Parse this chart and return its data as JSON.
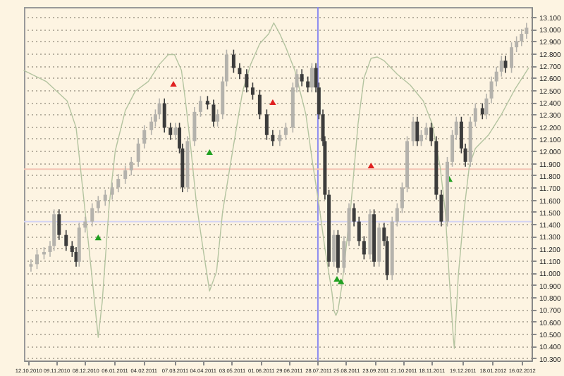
{
  "chart_data": {
    "type": "candlestick",
    "colors": [
      "#b4b2ac",
      "#b4b2ac",
      "#b4b2ac",
      "#b4b2ac",
      "#b4b2ac",
      "#3c3c3c",
      "#3c3c3c",
      "#3c3c3c",
      "#3c3c3c",
      "#b4b2ac",
      "#b4b2ac",
      "#b4b2ac",
      "#b4b2ac",
      "#b4b2ac",
      "#b4b2ac",
      "#b4b2ac",
      "#b4b2ac",
      "#b4b2ac",
      "#b4b2ac",
      "#b4b2ac",
      "#b4b2ac",
      "#b4b2ac",
      "#b4b2ac",
      "#3c3c3c",
      "#3c3c3c",
      "#b4b2ac",
      "#3c3c3c",
      "#3c3c3c",
      "#b4b2ac",
      "#b4b2ac",
      "#b4b2ac",
      "#3c3c3c",
      "#3c3c3c",
      "#b4b2ac",
      "#b4b2ac",
      "#b4b2ac",
      "#3c3c3c",
      "#3c3c3c",
      "#3c3c3c",
      "#3c3c3c",
      "#3c3c3c",
      "#3c3c3c",
      "#3c3c3c",
      "#b4b2ac",
      "#b4b2ac",
      "#b4b2ac",
      "#b4b2ac",
      "#3c3c3c",
      "#3c3c3c",
      "#b4b2ac",
      "#3c3c3c",
      "#3c3c3c",
      "#3c3c3c",
      "#3c3c3c",
      "#3c3c3c",
      "#b4b2ac",
      "#3c3c3c",
      "#b4b2ac",
      "#b4b2ac",
      "#3c3c3c",
      "#3c3c3c",
      "#3c3c3c",
      "#b4b2ac",
      "#3c3c3c",
      "#b4b2ac",
      "#3c3c3c",
      "#3c3c3c",
      "#b4b2ac",
      "#b4b2ac",
      "#b4b2ac",
      "#b4b2ac",
      "#b4b2ac",
      "#3c3c3c",
      "#b4b2ac",
      "#b4b2ac",
      "#3c3c3c",
      "#3c3c3c",
      "#3c3c3c",
      "#b4b2ac",
      "#b4b2ac",
      "#b4b2ac",
      "#3c3c3c",
      "#3c3c3c",
      "#b4b2ac",
      "#b4b2ac",
      "#3c3c3c",
      "#b4b2ac",
      "#b4b2ac",
      "#b4b2ac",
      "#b4b2ac",
      "#3c3c3c",
      "#b4b2ac",
      "#b4b2ac",
      "#b4b2ac",
      "#b4b2ac"
    ],
    "x": [
      "2010-10-15",
      "2010-10-21",
      "2010-10-28",
      "2010-11-03",
      "2010-11-07",
      "2010-11-12",
      "2010-11-19",
      "2010-11-25",
      "2010-11-29",
      "2010-12-02",
      "2010-12-08",
      "2010-12-15",
      "2010-12-21",
      "2010-12-28",
      "2011-01-04",
      "2011-01-10",
      "2011-01-17",
      "2011-01-23",
      "2011-01-30",
      "2011-02-05",
      "2011-02-12",
      "2011-02-16",
      "2011-02-20",
      "2011-02-25",
      "2011-03-03",
      "2011-03-08",
      "2011-03-12",
      "2011-03-15",
      "2011-03-20",
      "2011-03-27",
      "2011-04-02",
      "2011-04-09",
      "2011-04-15",
      "2011-04-19",
      "2011-04-24",
      "2011-04-28",
      "2011-05-05",
      "2011-05-11",
      "2011-05-18",
      "2011-05-24",
      "2011-05-31",
      "2011-06-07",
      "2011-06-13",
      "2011-06-20",
      "2011-06-26",
      "2011-07-03",
      "2011-07-07",
      "2011-07-12",
      "2011-07-18",
      "2011-07-22",
      "2011-07-26",
      "2011-07-29",
      "2011-08-02",
      "2011-08-04",
      "2011-08-08",
      "2011-08-13",
      "2011-08-17",
      "2011-08-23",
      "2011-08-28",
      "2011-09-02",
      "2011-09-07",
      "2011-09-12",
      "2011-09-18",
      "2011-09-22",
      "2011-09-27",
      "2011-10-02",
      "2011-10-05",
      "2011-10-10",
      "2011-10-15",
      "2011-10-20",
      "2011-10-25",
      "2011-10-31",
      "2011-11-04",
      "2011-11-08",
      "2011-11-13",
      "2011-11-18",
      "2011-11-23",
      "2011-11-28",
      "2011-12-04",
      "2011-12-09",
      "2011-12-13",
      "2011-12-18",
      "2011-12-22",
      "2011-12-27",
      "2012-01-01",
      "2012-01-08",
      "2012-01-12",
      "2012-01-17",
      "2012-01-22",
      "2012-01-27",
      "2012-01-31",
      "2012-02-06",
      "2012-02-11",
      "2012-02-16",
      "2012-02-21"
    ],
    "ohlc": [
      [
        11050,
        11110,
        11010,
        11070
      ],
      [
        11070,
        11190,
        11030,
        11150
      ],
      [
        11150,
        11210,
        11110,
        11170
      ],
      [
        11170,
        11260,
        11130,
        11220
      ],
      [
        11220,
        11520,
        11180,
        11480
      ],
      [
        11480,
        11520,
        11270,
        11310
      ],
      [
        11310,
        11350,
        11180,
        11220
      ],
      [
        11220,
        11260,
        11130,
        11170
      ],
      [
        11170,
        11210,
        11050,
        11090
      ],
      [
        11090,
        11410,
        11050,
        11370
      ],
      [
        11370,
        11460,
        11330,
        11420
      ],
      [
        11420,
        11570,
        11380,
        11530
      ],
      [
        11530,
        11630,
        11490,
        11590
      ],
      [
        11590,
        11680,
        11550,
        11640
      ],
      [
        11640,
        11740,
        11600,
        11700
      ],
      [
        11700,
        11810,
        11660,
        11770
      ],
      [
        11770,
        11880,
        11730,
        11840
      ],
      [
        11840,
        11950,
        11800,
        11910
      ],
      [
        11910,
        12100,
        11870,
        12060
      ],
      [
        12060,
        12210,
        12020,
        12170
      ],
      [
        12170,
        12280,
        12130,
        12240
      ],
      [
        12240,
        12340,
        12200,
        12300
      ],
      [
        12300,
        12430,
        12260,
        12390
      ],
      [
        12390,
        12430,
        12150,
        12190
      ],
      [
        12190,
        12230,
        12090,
        12130
      ],
      [
        12130,
        12230,
        12090,
        12190
      ],
      [
        12190,
        12230,
        11980,
        12020
      ],
      [
        12020,
        12060,
        11660,
        11700
      ],
      [
        11700,
        12120,
        11660,
        12080
      ],
      [
        12080,
        12360,
        12040,
        12320
      ],
      [
        12320,
        12450,
        12280,
        12410
      ],
      [
        12410,
        12450,
        12340,
        12380
      ],
      [
        12380,
        12420,
        12200,
        12240
      ],
      [
        12240,
        12340,
        12200,
        12300
      ],
      [
        12300,
        12610,
        12260,
        12570
      ],
      [
        12570,
        12830,
        12530,
        12790
      ],
      [
        12790,
        12830,
        12640,
        12680
      ],
      [
        12680,
        12720,
        12590,
        12630
      ],
      [
        12630,
        12670,
        12480,
        12520
      ],
      [
        12520,
        12560,
        12420,
        12460
      ],
      [
        12460,
        12500,
        12260,
        12300
      ],
      [
        12300,
        12340,
        12090,
        12130
      ],
      [
        12130,
        12170,
        12040,
        12080
      ],
      [
        12080,
        12170,
        12040,
        12130
      ],
      [
        12130,
        12230,
        12090,
        12190
      ],
      [
        12190,
        12560,
        12150,
        12520
      ],
      [
        12520,
        12670,
        12480,
        12630
      ],
      [
        12630,
        12670,
        12530,
        12570
      ],
      [
        12570,
        12610,
        12480,
        12520
      ],
      [
        12520,
        12720,
        12480,
        12680
      ],
      [
        12680,
        12720,
        12480,
        12520
      ],
      [
        12520,
        12560,
        12260,
        12300
      ],
      [
        12300,
        12340,
        12040,
        12080
      ],
      [
        12080,
        12120,
        11600,
        11640
      ],
      [
        11640,
        11680,
        11050,
        11090
      ],
      [
        11090,
        11350,
        11050,
        11310
      ],
      [
        11310,
        11350,
        11000,
        11040
      ],
      [
        11040,
        11300,
        11000,
        11260
      ],
      [
        11260,
        11570,
        11220,
        11530
      ],
      [
        11530,
        11570,
        11380,
        11420
      ],
      [
        11420,
        11460,
        11220,
        11260
      ],
      [
        11260,
        11300,
        11110,
        11150
      ],
      [
        11150,
        11520,
        11110,
        11480
      ],
      [
        11480,
        11520,
        11050,
        11090
      ],
      [
        11090,
        11410,
        11050,
        11370
      ],
      [
        11370,
        11410,
        11220,
        11260
      ],
      [
        11260,
        11300,
        10940,
        10980
      ],
      [
        10980,
        11460,
        10940,
        11420
      ],
      [
        11420,
        11570,
        11380,
        11530
      ],
      [
        11530,
        11740,
        11490,
        11700
      ],
      [
        11700,
        12120,
        11660,
        12080
      ],
      [
        12080,
        12280,
        12040,
        12240
      ],
      [
        12240,
        12280,
        12040,
        12080
      ],
      [
        12080,
        12170,
        12040,
        12130
      ],
      [
        12130,
        12230,
        12090,
        12190
      ],
      [
        12190,
        12230,
        12040,
        12080
      ],
      [
        12080,
        12120,
        11600,
        11640
      ],
      [
        11640,
        11680,
        11380,
        11420
      ],
      [
        11420,
        11950,
        11380,
        11910
      ],
      [
        11910,
        12170,
        11870,
        12130
      ],
      [
        12130,
        12280,
        12090,
        12240
      ],
      [
        12240,
        12280,
        11980,
        12020
      ],
      [
        12020,
        12060,
        11870,
        11910
      ],
      [
        11910,
        12280,
        11870,
        12240
      ],
      [
        12240,
        12390,
        12200,
        12350
      ],
      [
        12350,
        12390,
        12260,
        12300
      ],
      [
        12300,
        12470,
        12260,
        12430
      ],
      [
        12430,
        12610,
        12390,
        12570
      ],
      [
        12570,
        12690,
        12530,
        12650
      ],
      [
        12650,
        12780,
        12610,
        12740
      ],
      [
        12740,
        12780,
        12640,
        12680
      ],
      [
        12680,
        12890,
        12640,
        12850
      ],
      [
        12850,
        12940,
        12810,
        12900
      ],
      [
        12900,
        13000,
        12860,
        12960
      ],
      [
        12960,
        13050,
        12920,
        13010
      ]
    ],
    "series": [
      {
        "type": "line",
        "color": "#b4c4a0",
        "x": [
          "2010-10-08",
          "2010-10-30",
          "2010-11-20",
          "2010-11-29",
          "2010-12-08",
          "2010-12-16",
          "2010-12-21",
          "2010-12-25",
          "2011-01-01",
          "2011-01-07",
          "2011-01-17",
          "2011-01-27",
          "2011-02-09",
          "2011-02-20",
          "2011-03-01",
          "2011-03-07",
          "2011-03-14",
          "2011-03-18",
          "2011-03-23",
          "2011-03-29",
          "2011-04-05",
          "2011-04-11",
          "2011-04-18",
          "2011-04-24",
          "2011-05-05",
          "2011-05-14",
          "2011-05-22",
          "2011-05-31",
          "2011-06-09",
          "2011-06-14",
          "2011-06-20",
          "2011-06-26",
          "2011-07-05",
          "2011-07-16",
          "2011-07-22",
          "2011-07-29",
          "2011-08-04",
          "2011-08-11",
          "2011-08-13",
          "2011-08-15",
          "2011-08-17",
          "2011-08-21",
          "2011-08-30",
          "2011-09-06",
          "2011-09-12",
          "2011-09-19",
          "2011-09-25",
          "2011-10-02",
          "2011-10-15",
          "2011-10-28",
          "2011-11-10",
          "2011-11-19",
          "2011-11-27",
          "2011-12-02",
          "2011-12-06",
          "2011-12-10",
          "2011-12-11",
          "2011-12-15",
          "2011-12-21",
          "2011-12-26",
          "2012-01-01",
          "2012-01-14",
          "2012-01-27",
          "2012-02-09",
          "2012-02-23"
        ],
        "values": [
          12660,
          12570,
          12410,
          12190,
          11500,
          10870,
          10470,
          10760,
          11560,
          12000,
          12330,
          12490,
          12570,
          12710,
          12790,
          12790,
          12660,
          12410,
          12050,
          11560,
          11170,
          10850,
          11010,
          11500,
          12050,
          12490,
          12710,
          12880,
          12960,
          13050,
          12960,
          12850,
          12660,
          12300,
          11940,
          11560,
          11200,
          10840,
          10690,
          10650,
          10690,
          10900,
          11560,
          12220,
          12600,
          12760,
          12770,
          12740,
          12630,
          12540,
          12410,
          12220,
          11860,
          11500,
          10950,
          10470,
          10380,
          10980,
          11530,
          11880,
          12020,
          12130,
          12300,
          12500,
          12680
        ]
      },
      {
        "type": "scatter",
        "color": "#e02020",
        "marker": "triangle",
        "x": [
          "2011-03-06",
          "2011-06-13",
          "2011-09-19"
        ],
        "values": [
          12550,
          12400,
          11880
        ]
      },
      {
        "type": "scatter",
        "color": "#20a020",
        "marker": "triangle",
        "x": [
          "2010-12-21",
          "2011-04-11",
          "2011-08-16",
          "2011-08-20",
          "2011-12-06"
        ],
        "values": [
          11290,
          11990,
          10950,
          10930,
          11770
        ]
      }
    ],
    "ref_lines": [
      {
        "axis": "x",
        "value": "2011-07-28",
        "color": "#8c8cf0"
      },
      {
        "axis": "y",
        "value": 11850,
        "color": "#f4c4b4"
      },
      {
        "axis": "y",
        "value": 11420,
        "color": "#d4d4f4"
      }
    ],
    "xlim": [
      "2010-10-08",
      "2012-02-26"
    ],
    "xticks": [
      {
        "value": "2010-10-12",
        "label": "12.10.2010"
      },
      {
        "value": "2010-11-09",
        "label": "09.11.2010"
      },
      {
        "value": "2010-12-08",
        "label": "08.12.2010"
      },
      {
        "value": "2011-01-06",
        "label": "06.01.2011"
      },
      {
        "value": "2011-02-04",
        "label": "04.02.2011"
      },
      {
        "value": "2011-03-07",
        "label": "07.03.2011"
      },
      {
        "value": "2011-04-04",
        "label": "04.04.2011"
      },
      {
        "value": "2011-05-03",
        "label": "03.05.2011"
      },
      {
        "value": "2011-06-01",
        "label": "01.06.2011"
      },
      {
        "value": "2011-06-29",
        "label": "29.06.2011"
      },
      {
        "value": "2011-07-28",
        "label": "28.07.2011"
      },
      {
        "value": "2011-08-25",
        "label": "25.08.2011"
      },
      {
        "value": "2011-09-23",
        "label": "23.09.2011"
      },
      {
        "value": "2011-10-21",
        "label": "21.10.2011"
      },
      {
        "value": "2011-11-18",
        "label": "18.11.2011"
      },
      {
        "value": "2011-12-19",
        "label": "19.12.2011"
      },
      {
        "value": "2012-01-18",
        "label": "18.01.2012"
      },
      {
        "value": "2012-02-16",
        "label": "16.02.2012"
      }
    ],
    "ylim": [
      10280,
      13180
    ],
    "yticks": [
      {
        "value": 10300,
        "label": "10.300"
      },
      {
        "value": 10400,
        "label": "10.400"
      },
      {
        "value": 10500,
        "label": "10.500"
      },
      {
        "value": 10600,
        "label": "10.600"
      },
      {
        "value": 10700,
        "label": "10.700"
      },
      {
        "value": 10800,
        "label": "10.800"
      },
      {
        "value": 10900,
        "label": "10.900"
      },
      {
        "value": 11000,
        "label": "11.000"
      },
      {
        "value": 11100,
        "label": "11.100"
      },
      {
        "value": 11200,
        "label": "11.200"
      },
      {
        "value": 11300,
        "label": "11.300"
      },
      {
        "value": 11400,
        "label": "11.400"
      },
      {
        "value": 11500,
        "label": "11.500"
      },
      {
        "value": 11600,
        "label": "11.600"
      },
      {
        "value": 11700,
        "label": "11.700"
      },
      {
        "value": 11800,
        "label": "11.800"
      },
      {
        "value": 11900,
        "label": "11.900"
      },
      {
        "value": 12000,
        "label": "12.000"
      },
      {
        "value": 12100,
        "label": "12.100"
      },
      {
        "value": 12200,
        "label": "12.200"
      },
      {
        "value": 12300,
        "label": "12.300"
      },
      {
        "value": 12400,
        "label": "12.400"
      },
      {
        "value": 12500,
        "label": "12.500"
      },
      {
        "value": 12600,
        "label": "12.600"
      },
      {
        "value": 12700,
        "label": "12.700"
      },
      {
        "value": 12800,
        "label": "12.800"
      },
      {
        "value": 12900,
        "label": "12.900"
      },
      {
        "value": 13000,
        "label": "13.000"
      },
      {
        "value": 13100,
        "label": "13.100"
      }
    ],
    "grid": "y"
  }
}
